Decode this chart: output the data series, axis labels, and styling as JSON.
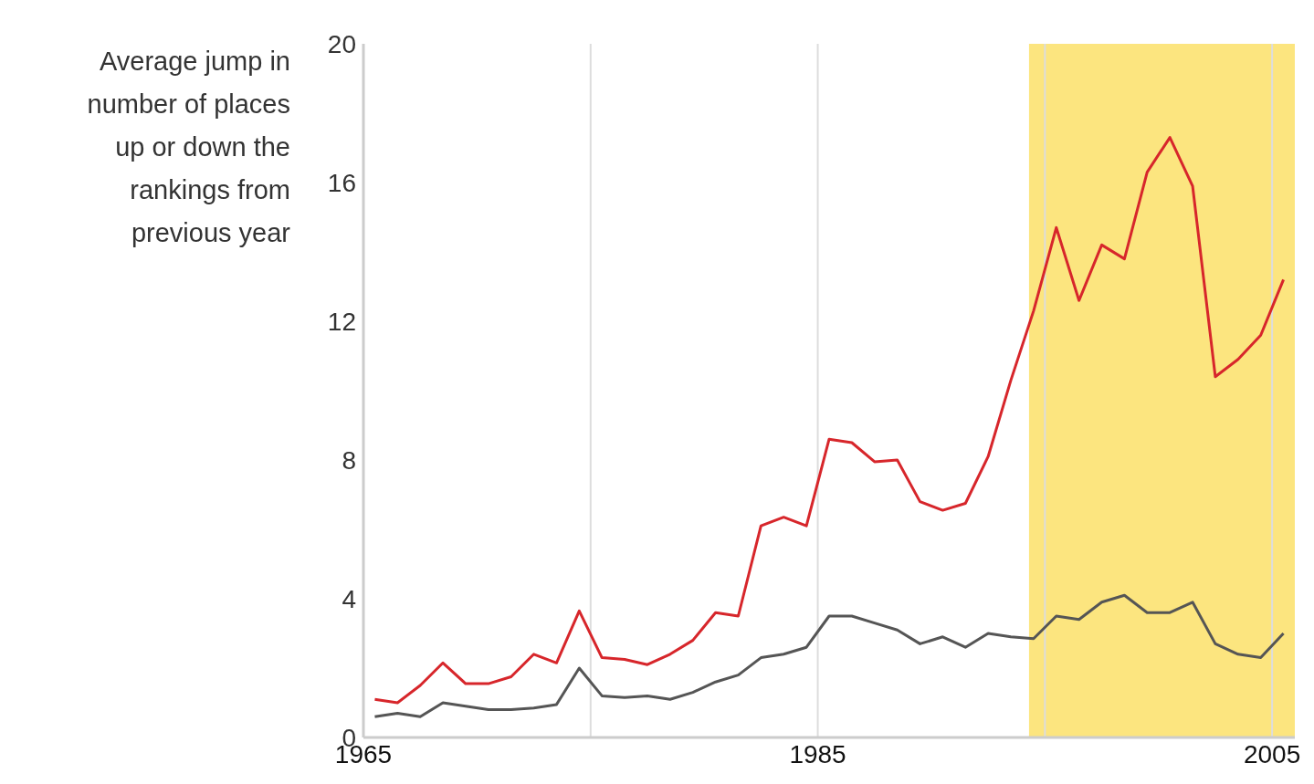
{
  "chart_data": {
    "type": "line",
    "ylabel": "Average jump in number of places up or down the rankings from previous year",
    "x": [
      1965.5,
      1966.5,
      1967.5,
      1968.5,
      1969.5,
      1970.5,
      1971.5,
      1972.5,
      1973.5,
      1974.5,
      1975.5,
      1976.5,
      1977.5,
      1978.5,
      1979.5,
      1980.5,
      1981.5,
      1982.5,
      1983.5,
      1984.5,
      1985.5,
      1986.5,
      1987.5,
      1988.5,
      1989.5,
      1990.5,
      1991.5,
      1992.5,
      1993.5,
      1994.5,
      1995.5,
      1996.5,
      1997.5,
      1998.5,
      1999.5,
      2000.5,
      2001.5,
      2002.5,
      2003.5,
      2004.5,
      2005.5
    ],
    "series": [
      {
        "color": "#d7262b",
        "values": [
          1.1,
          1.0,
          1.5,
          2.15,
          1.55,
          1.55,
          1.75,
          2.4,
          2.15,
          3.65,
          2.3,
          2.25,
          2.1,
          2.4,
          2.8,
          3.6,
          3.5,
          6.1,
          6.35,
          6.1,
          8.6,
          8.5,
          7.95,
          8.0,
          6.8,
          6.55,
          6.75,
          8.1,
          10.3,
          12.3,
          14.7,
          12.6,
          14.2,
          13.8,
          16.3,
          17.3,
          15.9,
          10.4,
          10.9,
          11.6,
          13.2
        ]
      },
      {
        "color": "#555555",
        "values": [
          0.6,
          0.7,
          0.6,
          1.0,
          0.9,
          0.8,
          0.8,
          0.85,
          0.95,
          2.0,
          1.2,
          1.15,
          1.2,
          1.1,
          1.3,
          1.6,
          1.8,
          2.3,
          2.4,
          2.6,
          3.5,
          3.5,
          3.3,
          3.1,
          2.7,
          2.9,
          2.6,
          3.0,
          2.9,
          2.85,
          3.5,
          3.4,
          3.9,
          4.1,
          3.6,
          3.6,
          3.9,
          2.7,
          2.4,
          2.3,
          3.0
        ]
      }
    ],
    "xlim": [
      1965,
      2006
    ],
    "xticks": [
      1965,
      {
        "value": 1975,
        "label": null
      },
      1985,
      {
        "value": 1995,
        "label": null
      },
      2005
    ],
    "ylim": [
      0,
      20
    ],
    "yticks": [
      0,
      4,
      8,
      12,
      16,
      20
    ],
    "bands": [
      {
        "axis": "x",
        "from": 1994.3,
        "to": 2006,
        "color": "#fce57f"
      }
    ],
    "grid": "x",
    "marker": "none",
    "line_style": "solid"
  }
}
